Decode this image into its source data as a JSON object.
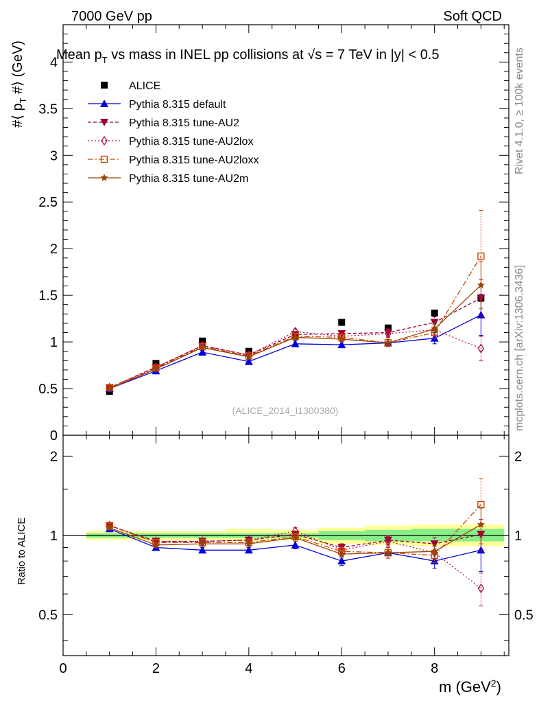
{
  "header": {
    "energy": "7000 GeV pp",
    "process": "Soft QCD",
    "title_prefix": "Mean p",
    "title_sub": "T",
    "title_mid": " vs mass in INEL pp collisions at ",
    "title_sqrt": "√s",
    "title_suffix": " =  7 TeV in |y| < 0.5",
    "watermark": "(ALICE_2014_I1300380)",
    "rivet": "Rivet 4.1.0, ≥ 100k events",
    "mcplots": "mcplots.cern.ch [arXiv:1306.3436]"
  },
  "colors": {
    "data": "#000000",
    "default": "#0000dd",
    "au2": "#990033",
    "au2lox": "#aa1144",
    "au2loxx": "#cc4400",
    "au2m": "#994400",
    "band_yellow": "#ffff99",
    "band_green": "#88ee88"
  },
  "chart_data": [
    {
      "type": "line",
      "panel": "main",
      "xlabel": "m (GeV²)",
      "ylabel": "#⟨ p_T #⟩ (GeV)",
      "xlim": [
        0,
        9.6
      ],
      "ylim": [
        0,
        4.4
      ],
      "xticks": [
        "0",
        "2",
        "4",
        "6",
        "8"
      ],
      "yticks": [
        "0",
        "0.5",
        "1",
        "1.5",
        "2",
        "2.5",
        "3",
        "3.5",
        "4"
      ],
      "x": [
        1,
        2,
        3,
        4,
        5,
        6,
        7,
        8,
        9
      ],
      "series": [
        {
          "name": "ALICE",
          "key": "data",
          "values": [
            0.47,
            0.77,
            1.01,
            0.9,
            1.07,
            1.21,
            1.15,
            1.31,
            1.47
          ]
        },
        {
          "name": "Pythia 8.315 default",
          "key": "default",
          "values": [
            0.5,
            0.69,
            0.89,
            0.79,
            0.98,
            0.97,
            0.99,
            1.04,
            1.29
          ],
          "err": [
            0.02,
            0.02,
            0.02,
            0.02,
            0.03,
            0.03,
            0.04,
            0.06,
            0.22
          ]
        },
        {
          "name": "Pythia 8.315 tune-AU2",
          "key": "au2",
          "values": [
            0.51,
            0.73,
            0.96,
            0.86,
            1.08,
            1.09,
            1.1,
            1.21,
            1.47
          ],
          "err": [
            0.02,
            0.02,
            0.02,
            0.02,
            0.03,
            0.03,
            0.04,
            0.06,
            0.2
          ]
        },
        {
          "name": "Pythia 8.315 tune-AU2lox",
          "key": "au2lox",
          "values": [
            0.51,
            0.73,
            0.96,
            0.86,
            1.11,
            1.06,
            1.09,
            1.13,
            0.93
          ],
          "err": [
            0.02,
            0.02,
            0.02,
            0.02,
            0.03,
            0.03,
            0.04,
            0.06,
            0.13
          ]
        },
        {
          "name": "Pythia 8.315 tune-AU2loxx",
          "key": "au2loxx",
          "values": [
            0.51,
            0.72,
            0.95,
            0.85,
            1.06,
            1.05,
            0.99,
            1.1,
            1.92
          ],
          "err": [
            0.02,
            0.02,
            0.02,
            0.02,
            0.03,
            0.03,
            0.04,
            0.06,
            0.49
          ]
        },
        {
          "name": "Pythia 8.315 tune-AU2m",
          "key": "au2m",
          "values": [
            0.5,
            0.71,
            0.94,
            0.84,
            1.05,
            1.03,
            0.99,
            1.14,
            1.61
          ],
          "err": [
            0.02,
            0.02,
            0.02,
            0.02,
            0.03,
            0.03,
            0.04,
            0.06,
            0.25
          ]
        }
      ]
    },
    {
      "type": "line",
      "panel": "ratio",
      "ylabel": "Ratio to ALICE",
      "xlabel": "m (GeV²)",
      "xlim": [
        0,
        9.6
      ],
      "ylim": [
        0.35,
        2.4
      ],
      "ylog": true,
      "yticks": [
        "0.5",
        "1",
        "2"
      ],
      "band_x": [
        [
          0.5,
          1.5
        ],
        [
          1.5,
          2.5
        ],
        [
          2.5,
          3.5
        ],
        [
          3.5,
          4.5
        ],
        [
          4.5,
          5.5
        ],
        [
          5.5,
          6.5
        ],
        [
          6.5,
          7.5
        ],
        [
          7.5,
          8.5
        ],
        [
          8.5,
          9.5
        ]
      ],
      "band_yellow": [
        [
          0.96,
          1.04
        ],
        [
          0.96,
          1.04
        ],
        [
          0.96,
          1.04
        ],
        [
          0.95,
          1.06
        ],
        [
          0.96,
          1.05
        ],
        [
          0.93,
          1.07
        ],
        [
          0.92,
          1.09
        ],
        [
          0.91,
          1.1
        ],
        [
          0.91,
          1.1
        ]
      ],
      "band_green": [
        [
          0.98,
          1.02
        ],
        [
          0.98,
          1.02
        ],
        [
          0.98,
          1.02
        ],
        [
          0.98,
          1.02
        ],
        [
          0.98,
          1.02
        ],
        [
          0.96,
          1.04
        ],
        [
          0.95,
          1.05
        ],
        [
          0.95,
          1.06
        ],
        [
          0.95,
          1.06
        ]
      ],
      "x": [
        1,
        2,
        3,
        4,
        5,
        6,
        7,
        8,
        9
      ],
      "series": [
        {
          "name": "Pythia 8.315 default",
          "key": "default",
          "values": [
            1.06,
            0.9,
            0.88,
            0.88,
            0.92,
            0.8,
            0.86,
            0.8,
            0.88
          ],
          "err": [
            0.02,
            0.02,
            0.02,
            0.02,
            0.03,
            0.03,
            0.04,
            0.05,
            0.15
          ]
        },
        {
          "name": "Pythia 8.315 tune-AU2",
          "key": "au2",
          "values": [
            1.09,
            0.95,
            0.95,
            0.96,
            1.01,
            0.9,
            0.96,
            0.93,
            1.01
          ],
          "err": [
            0.02,
            0.02,
            0.02,
            0.02,
            0.03,
            0.03,
            0.04,
            0.05,
            0.14
          ]
        },
        {
          "name": "Pythia 8.315 tune-AU2lox",
          "key": "au2lox",
          "values": [
            1.09,
            0.95,
            0.95,
            0.96,
            1.04,
            0.88,
            0.95,
            0.86,
            0.63
          ],
          "err": [
            0.02,
            0.02,
            0.02,
            0.02,
            0.03,
            0.03,
            0.04,
            0.05,
            0.09
          ]
        },
        {
          "name": "Pythia 8.315 tune-AU2loxx",
          "key": "au2loxx",
          "values": [
            1.09,
            0.94,
            0.94,
            0.94,
            0.99,
            0.87,
            0.86,
            0.84,
            1.31
          ],
          "err": [
            0.02,
            0.02,
            0.02,
            0.02,
            0.03,
            0.03,
            0.04,
            0.05,
            0.33
          ]
        },
        {
          "name": "Pythia 8.315 tune-AU2m",
          "key": "au2m",
          "values": [
            1.07,
            0.92,
            0.93,
            0.93,
            0.98,
            0.85,
            0.86,
            0.87,
            1.1
          ],
          "err": [
            0.02,
            0.02,
            0.02,
            0.02,
            0.03,
            0.03,
            0.04,
            0.05,
            0.17
          ]
        }
      ]
    }
  ]
}
